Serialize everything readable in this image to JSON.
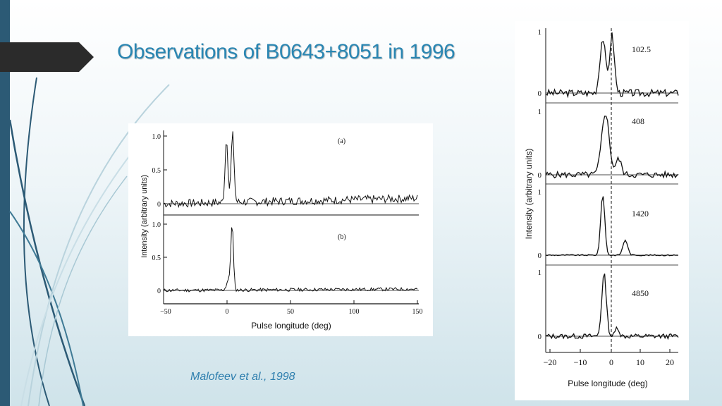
{
  "slide": {
    "title": "Observations of B0643+8051 in 1996",
    "citation": "Malofeev et al., 1998",
    "colors": {
      "title": "#2a86b2",
      "left_bar": "#2c5a75",
      "tab": "#2b2b2b",
      "citation": "#2f7fae"
    }
  },
  "figure_left": {
    "ylabel": "Intensity (arbitrary units)",
    "xlabel": "Pulse longitude (deg)",
    "panel_a_label": "(a)",
    "panel_b_label": "(b)",
    "yticks_a": [
      "1.0",
      "0.5",
      "0"
    ],
    "yticks_b": [
      "1.0",
      "0.5",
      "0"
    ],
    "xticks": [
      "−50",
      "0",
      "50",
      "100",
      "150"
    ]
  },
  "figure_right": {
    "ylabel": "Intensity (arbitrary units)",
    "xlabel": "Pulse longitude (deg)",
    "xticks": [
      "−20",
      "−10",
      "0",
      "10",
      "20"
    ],
    "panels": [
      {
        "label": "102.5",
        "tick_top": "1",
        "tick_bottom": "0"
      },
      {
        "label": "408",
        "tick_top": "1",
        "tick_bottom": "0"
      },
      {
        "label": "1420",
        "tick_top": "1",
        "tick_bottom": "0"
      },
      {
        "label": "4850",
        "tick_top": "1",
        "tick_bottom": "0"
      }
    ]
  }
}
